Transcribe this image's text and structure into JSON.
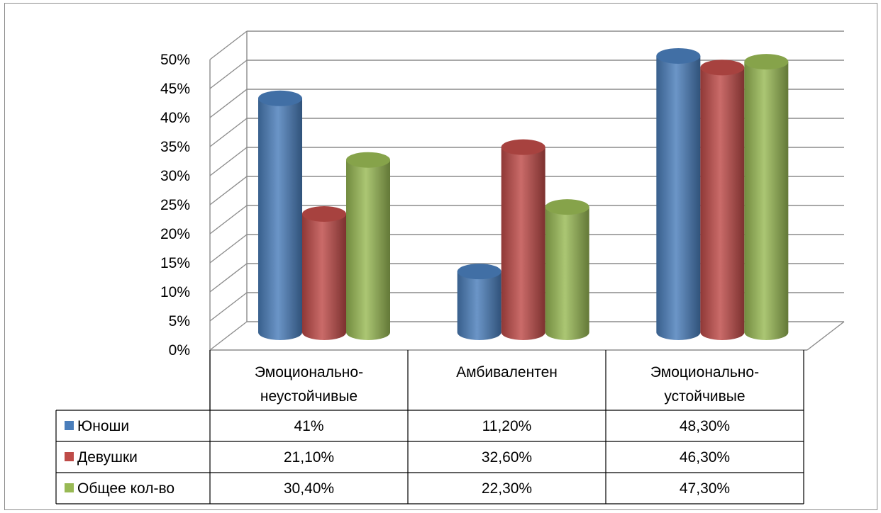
{
  "chart_data": {
    "type": "bar",
    "style": "3d-cylinder-clustered",
    "categories": [
      [
        "Эмоционально-",
        "неустойчивые"
      ],
      [
        "Амбивалентен"
      ],
      [
        "Эмоционально-",
        "устойчивые"
      ]
    ],
    "series": [
      {
        "name": "Юноши",
        "color": "#4a7ebb",
        "values": [
          41,
          11.2,
          48.3
        ],
        "labels": [
          "41%",
          "11,20%",
          "48,30%"
        ]
      },
      {
        "name": "Девушки",
        "color": "#be4b48",
        "values": [
          21.1,
          32.6,
          46.3
        ],
        "labels": [
          "21,10%",
          "32,60%",
          "46,30%"
        ]
      },
      {
        "name": "Общее кол-во",
        "color": "#98b954",
        "values": [
          30.4,
          22.3,
          47.3
        ],
        "labels": [
          "30,40%",
          "22,30%",
          "47,30%"
        ]
      }
    ],
    "yticks": [
      "0%",
      "5%",
      "10%",
      "15%",
      "20%",
      "25%",
      "30%",
      "35%",
      "40%",
      "45%",
      "50%"
    ],
    "ylim": [
      0,
      50
    ],
    "grid": true,
    "legend": "data-table"
  }
}
